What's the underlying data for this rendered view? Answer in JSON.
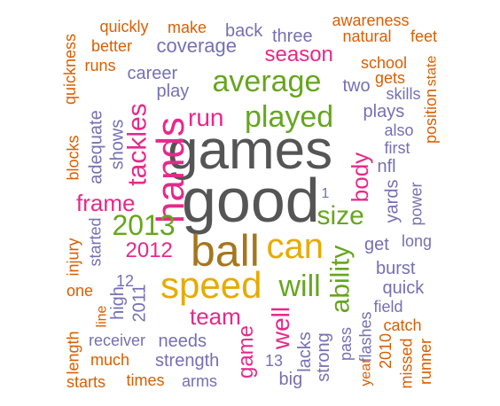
{
  "colors": {
    "orange": "#D95F02",
    "purple": "#7570B3",
    "magenta": "#E7298A",
    "green": "#66A61E",
    "gold": "#E6AB02",
    "brown": "#A6761D",
    "gray": "#555555"
  },
  "words": [
    {
      "text": "games",
      "color": "gray"
    },
    {
      "text": "good",
      "color": "gray"
    },
    {
      "text": "ball",
      "color": "brown"
    },
    {
      "text": "speed",
      "color": "gold"
    },
    {
      "text": "can",
      "color": "gold"
    },
    {
      "text": "hands",
      "color": "magenta"
    },
    {
      "text": "played",
      "color": "green"
    },
    {
      "text": "average",
      "color": "green"
    },
    {
      "text": "will",
      "color": "green"
    },
    {
      "text": "2013",
      "color": "green"
    },
    {
      "text": "run",
      "color": "magenta"
    },
    {
      "text": "ability",
      "color": "green"
    },
    {
      "text": "size",
      "color": "green"
    },
    {
      "text": "tackles",
      "color": "magenta"
    },
    {
      "text": "team",
      "color": "magenta"
    },
    {
      "text": "frame",
      "color": "magenta"
    },
    {
      "text": "body",
      "color": "magenta"
    },
    {
      "text": "season",
      "color": "magenta"
    },
    {
      "text": "2012",
      "color": "magenta"
    },
    {
      "text": "well",
      "color": "magenta"
    },
    {
      "text": "game",
      "color": "magenta"
    },
    {
      "text": "coverage",
      "color": "purple"
    },
    {
      "text": "career",
      "color": "purple"
    },
    {
      "text": "play",
      "color": "purple"
    },
    {
      "text": "plays",
      "color": "purple"
    },
    {
      "text": "lacks",
      "color": "purple"
    },
    {
      "text": "needs",
      "color": "purple"
    },
    {
      "text": "strength",
      "color": "purple"
    },
    {
      "text": "burst",
      "color": "purple"
    },
    {
      "text": "get",
      "color": "purple"
    },
    {
      "text": "quick",
      "color": "purple"
    },
    {
      "text": "strong",
      "color": "purple"
    },
    {
      "text": "back",
      "color": "purple"
    },
    {
      "text": "three",
      "color": "purple"
    },
    {
      "text": "two",
      "color": "purple"
    },
    {
      "text": "shows",
      "color": "purple"
    },
    {
      "text": "adequate",
      "color": "purple"
    },
    {
      "text": "started",
      "color": "purple"
    },
    {
      "text": "2011",
      "color": "purple"
    },
    {
      "text": "high",
      "color": "purple"
    },
    {
      "text": "12",
      "color": "purple"
    },
    {
      "text": "yards",
      "color": "purple"
    },
    {
      "text": "nfl",
      "color": "purple"
    },
    {
      "text": "long",
      "color": "purple"
    },
    {
      "text": "power",
      "color": "purple"
    },
    {
      "text": "field",
      "color": "purple"
    },
    {
      "text": "flashes",
      "color": "purple"
    },
    {
      "text": "pass",
      "color": "purple"
    },
    {
      "text": "big",
      "color": "purple"
    },
    {
      "text": "13",
      "color": "purple"
    },
    {
      "text": "arms",
      "color": "purple"
    },
    {
      "text": "1",
      "color": "purple"
    },
    {
      "text": "first",
      "color": "purple"
    },
    {
      "text": "also",
      "color": "purple"
    },
    {
      "text": "skills",
      "color": "purple"
    },
    {
      "text": "receiver",
      "color": "purple"
    },
    {
      "text": "quickly",
      "color": "orange"
    },
    {
      "text": "make",
      "color": "orange"
    },
    {
      "text": "awareness",
      "color": "orange"
    },
    {
      "text": "natural",
      "color": "orange"
    },
    {
      "text": "feet",
      "color": "orange"
    },
    {
      "text": "better",
      "color": "orange"
    },
    {
      "text": "runs",
      "color": "orange"
    },
    {
      "text": "quickness",
      "color": "orange"
    },
    {
      "text": "school",
      "color": "orange"
    },
    {
      "text": "gets",
      "color": "orange"
    },
    {
      "text": "state",
      "color": "orange"
    },
    {
      "text": "position",
      "color": "orange"
    },
    {
      "text": "blocks",
      "color": "orange"
    },
    {
      "text": "injury",
      "color": "orange"
    },
    {
      "text": "one",
      "color": "orange"
    },
    {
      "text": "line",
      "color": "orange"
    },
    {
      "text": "length",
      "color": "orange"
    },
    {
      "text": "much",
      "color": "orange"
    },
    {
      "text": "starts",
      "color": "orange"
    },
    {
      "text": "times",
      "color": "orange"
    },
    {
      "text": "catch",
      "color": "orange"
    },
    {
      "text": "2010",
      "color": "orange"
    },
    {
      "text": "missed",
      "color": "orange"
    },
    {
      "text": "runner",
      "color": "orange"
    },
    {
      "text": "year",
      "color": "orange"
    }
  ]
}
